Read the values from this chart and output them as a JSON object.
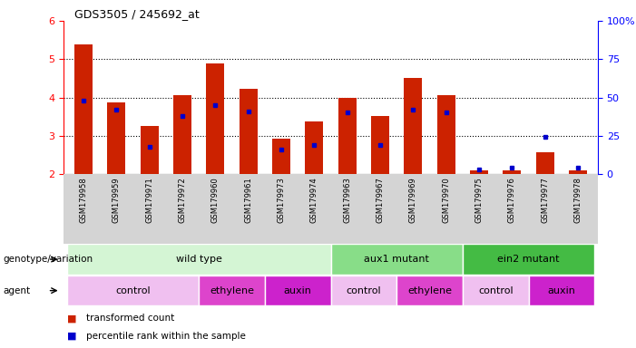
{
  "title": "GDS3505 / 245692_at",
  "samples": [
    "GSM179958",
    "GSM179959",
    "GSM179971",
    "GSM179972",
    "GSM179960",
    "GSM179961",
    "GSM179973",
    "GSM179974",
    "GSM179963",
    "GSM179967",
    "GSM179969",
    "GSM179970",
    "GSM179975",
    "GSM179976",
    "GSM179977",
    "GSM179978"
  ],
  "red_values": [
    5.38,
    3.87,
    3.25,
    4.07,
    4.88,
    4.22,
    2.93,
    3.37,
    4.0,
    3.52,
    4.52,
    4.07,
    2.1,
    2.1,
    2.58,
    2.1
  ],
  "blue_values_pct": [
    48,
    42,
    18,
    38,
    45,
    41,
    16,
    19,
    40,
    19,
    42,
    40,
    3,
    4,
    24,
    4
  ],
  "y_min": 2.0,
  "y_max": 6.0,
  "y_ticks": [
    2,
    3,
    4,
    5,
    6
  ],
  "right_y_ticks": [
    0,
    25,
    50,
    75,
    100
  ],
  "right_y_labels": [
    "0",
    "25",
    "50",
    "75",
    "100%"
  ],
  "genotype_groups": [
    {
      "label": "wild type",
      "start": 0,
      "end": 8,
      "color": "#d4f5d4"
    },
    {
      "label": "aux1 mutant",
      "start": 8,
      "end": 12,
      "color": "#88dd88"
    },
    {
      "label": "ein2 mutant",
      "start": 12,
      "end": 16,
      "color": "#44bb44"
    }
  ],
  "agent_groups": [
    {
      "label": "control",
      "start": 0,
      "end": 4,
      "color": "#f0c0f0"
    },
    {
      "label": "ethylene",
      "start": 4,
      "end": 6,
      "color": "#dd44cc"
    },
    {
      "label": "auxin",
      "start": 6,
      "end": 8,
      "color": "#cc22cc"
    },
    {
      "label": "control",
      "start": 8,
      "end": 10,
      "color": "#f0c0f0"
    },
    {
      "label": "ethylene",
      "start": 10,
      "end": 12,
      "color": "#dd44cc"
    },
    {
      "label": "control",
      "start": 12,
      "end": 14,
      "color": "#f0c0f0"
    },
    {
      "label": "auxin",
      "start": 14,
      "end": 16,
      "color": "#cc22cc"
    }
  ],
  "bar_color": "#cc2200",
  "dot_color": "#0000cc",
  "label_row1": "genotype/variation",
  "label_row2": "agent",
  "legend_red": "transformed count",
  "legend_blue": "percentile rank within the sample",
  "sample_bg_color": "#d4d4d4"
}
